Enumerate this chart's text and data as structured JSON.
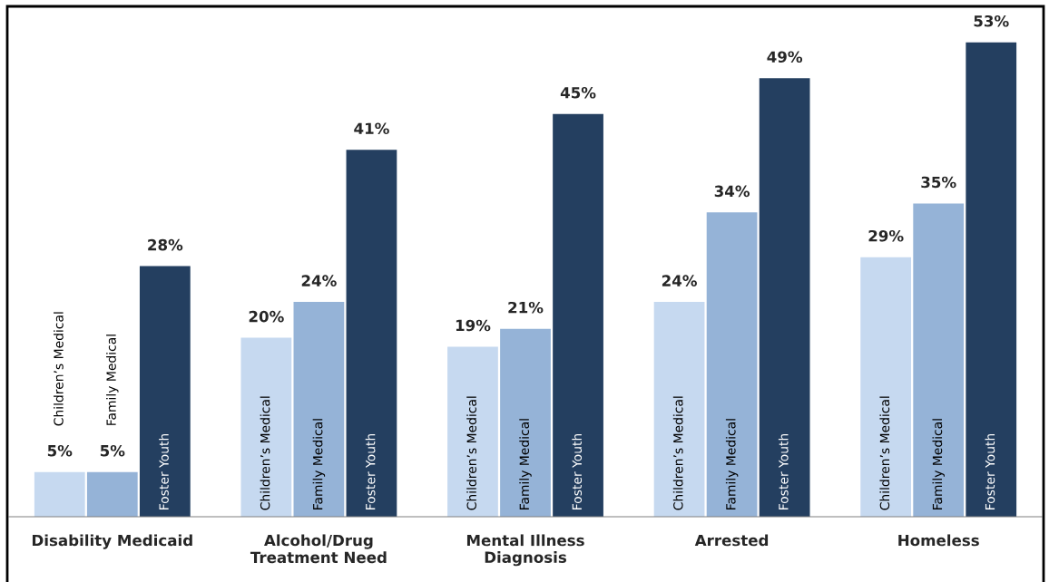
{
  "chart_data": {
    "type": "bar",
    "categories": [
      "Disability Medicaid",
      "Alcohol/Drug\nTreatment Need",
      "Mental Illness\nDiagnosis",
      "Arrested",
      "Homeless"
    ],
    "series": [
      {
        "name": "Children’s Medical",
        "color": "#c6d9f0",
        "values": [
          5,
          20,
          19,
          24,
          29
        ],
        "value_labels": [
          "5%",
          "20%",
          "19%",
          "24%",
          "29%"
        ]
      },
      {
        "name": "Family Medical",
        "color": "#95b3d7",
        "values": [
          5,
          24,
          21,
          34,
          35
        ],
        "value_labels": [
          "5%",
          "24%",
          "21%",
          "34%",
          "35%"
        ]
      },
      {
        "name": "Foster Youth",
        "color": "#243f60",
        "values": [
          28,
          41,
          45,
          49,
          53
        ],
        "value_labels": [
          "28%",
          "41%",
          "45%",
          "49%",
          "53%"
        ]
      }
    ],
    "grid": false,
    "legend": false
  }
}
